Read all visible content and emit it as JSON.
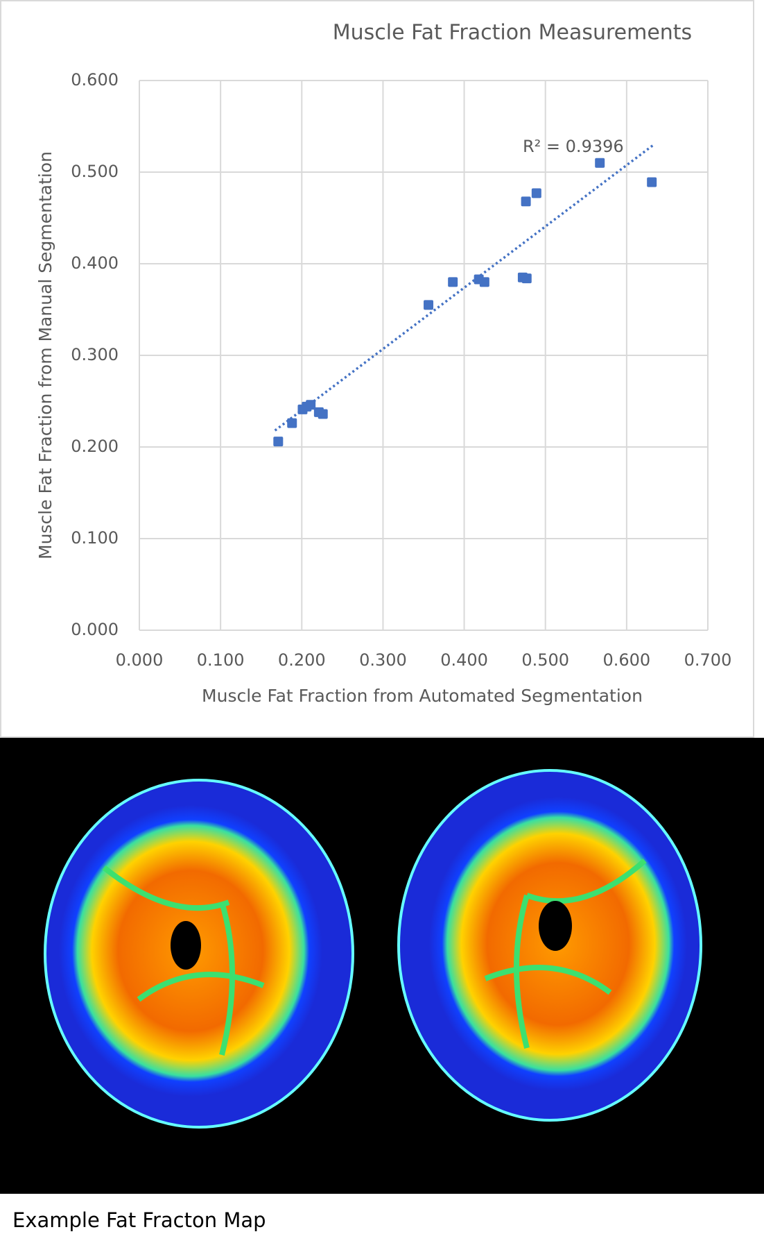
{
  "chart_data": {
    "type": "scatter",
    "title": "Muscle Fat Fraction Measurements",
    "x_label": "Muscle Fat Fraction from Automated  Segmentation",
    "y_label": "Muscle Fat Fraction from Manual Segmentation",
    "annotation": "R² = 0.9396",
    "color": "#4472c4",
    "grid": true,
    "xlim": [
      0,
      0.7
    ],
    "ylim": [
      0,
      0.6
    ],
    "xticks": [
      {
        "value": 0,
        "label": "0.000"
      },
      {
        "value": 0.1,
        "label": "0.100"
      },
      {
        "value": 0.2,
        "label": "0.200"
      },
      {
        "value": 0.3,
        "label": "0.300"
      },
      {
        "value": 0.4,
        "label": "0.400"
      },
      {
        "value": 0.5,
        "label": "0.500"
      },
      {
        "value": 0.6,
        "label": "0.600"
      },
      {
        "value": 0.7,
        "label": "0.700"
      }
    ],
    "yticks": [
      {
        "value": 0,
        "label": "0.000"
      },
      {
        "value": 0.1,
        "label": "0.100"
      },
      {
        "value": 0.2,
        "label": "0.200"
      },
      {
        "value": 0.3,
        "label": "0.300"
      },
      {
        "value": 0.4,
        "label": "0.400"
      },
      {
        "value": 0.5,
        "label": "0.500"
      },
      {
        "value": 0.6,
        "label": "0.600"
      }
    ],
    "x": [
      0.171,
      0.188,
      0.201,
      0.206,
      0.211,
      0.221,
      0.226,
      0.356,
      0.386,
      0.418,
      0.425,
      0.472,
      0.477,
      0.476,
      0.489,
      0.567,
      0.631
    ],
    "y": [
      0.206,
      0.226,
      0.241,
      0.244,
      0.246,
      0.238,
      0.236,
      0.355,
      0.38,
      0.383,
      0.38,
      0.385,
      0.384,
      0.468,
      0.477,
      0.51,
      0.489
    ],
    "trendline": {
      "x": [
        0.167,
        0.632
      ],
      "y": [
        0.218,
        0.529
      ]
    }
  },
  "caption": "Example Fat Fracton Map"
}
